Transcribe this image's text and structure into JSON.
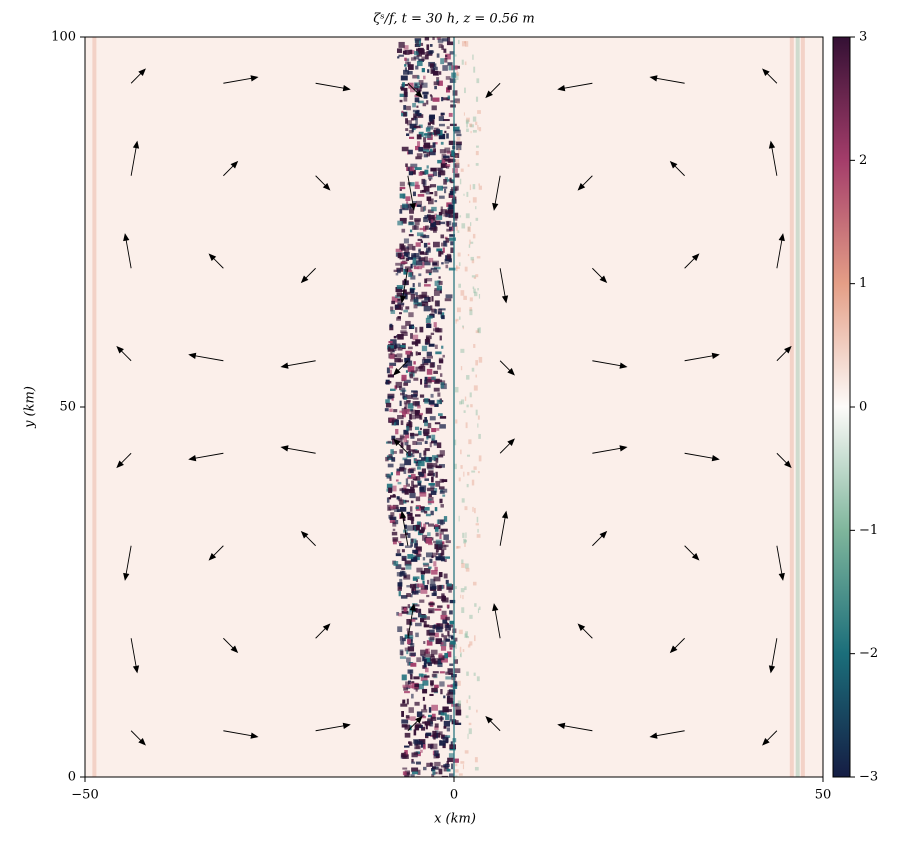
{
  "chart_data": {
    "type": "quiver",
    "title": "ζˢ/f, t = 30 h, z = 0.56 m",
    "x_label": "x (km)",
    "y_label": "y (km)",
    "xlim": [
      -50,
      50
    ],
    "ylim": [
      0,
      100
    ],
    "xticks": [
      {
        "value": -50,
        "label": "−50"
      },
      0,
      50
    ],
    "yticks": [
      0,
      50,
      100
    ],
    "arrow_color": "#000000",
    "quiver": {
      "x": [
        -43.75,
        -31.25,
        -18.75,
        -6.25,
        6.25,
        18.75,
        31.25,
        43.75
      ],
      "y": [
        6.25,
        18.75,
        31.25,
        43.75,
        56.25,
        68.75,
        81.25,
        93.75
      ],
      "u": [
        [
          0.35,
          0.85,
          0.85,
          0.35,
          -0.35,
          -0.85,
          -0.85,
          -0.35
        ],
        [
          0.15,
          0.35,
          0.35,
          0.15,
          -0.15,
          -0.35,
          -0.35,
          -0.15
        ],
        [
          -0.15,
          -0.35,
          -0.35,
          -0.15,
          0.15,
          0.35,
          0.35,
          0.15
        ],
        [
          -0.35,
          -0.85,
          -0.85,
          -0.35,
          0.35,
          0.85,
          0.85,
          0.35
        ],
        [
          -0.35,
          -0.85,
          -0.85,
          -0.35,
          0.35,
          0.85,
          0.85,
          0.35
        ],
        [
          -0.15,
          -0.35,
          -0.35,
          -0.15,
          0.15,
          0.35,
          0.35,
          0.15
        ],
        [
          0.15,
          0.35,
          0.35,
          0.15,
          -0.15,
          -0.35,
          -0.35,
          -0.15
        ],
        [
          0.35,
          0.85,
          0.85,
          0.35,
          -0.35,
          -0.85,
          -0.85,
          -0.35
        ]
      ],
      "v": [
        [
          -0.35,
          -0.15,
          0.15,
          0.35,
          0.35,
          0.15,
          -0.15,
          -0.35
        ],
        [
          -0.85,
          -0.35,
          0.35,
          0.85,
          0.85,
          0.35,
          -0.35,
          -0.85
        ],
        [
          -0.85,
          -0.35,
          0.35,
          0.85,
          0.85,
          0.35,
          -0.35,
          -0.85
        ],
        [
          -0.35,
          -0.15,
          0.15,
          0.35,
          0.35,
          0.15,
          -0.15,
          -0.35
        ],
        [
          0.35,
          0.15,
          -0.15,
          -0.35,
          -0.35,
          -0.15,
          0.15,
          0.35
        ],
        [
          0.85,
          0.35,
          -0.35,
          -0.85,
          -0.85,
          -0.35,
          0.35,
          0.85
        ],
        [
          0.85,
          0.35,
          -0.35,
          -0.85,
          -0.85,
          -0.35,
          0.35,
          0.85
        ],
        [
          0.35,
          0.15,
          -0.15,
          -0.35,
          -0.35,
          -0.15,
          0.15,
          0.35
        ]
      ]
    },
    "colorbar": {
      "lim": [
        -3,
        3
      ],
      "ticks": [
        {
          "value": -3,
          "label": "−3"
        },
        {
          "value": -2,
          "label": "−2"
        },
        {
          "value": -1,
          "label": "−1"
        },
        0,
        1,
        2,
        3
      ],
      "colors": [
        "#151d44",
        "#1b6e7a",
        "#7fb69c",
        "#fdfbf9",
        "#e49e86",
        "#a43d6a",
        "#341034"
      ]
    }
  }
}
